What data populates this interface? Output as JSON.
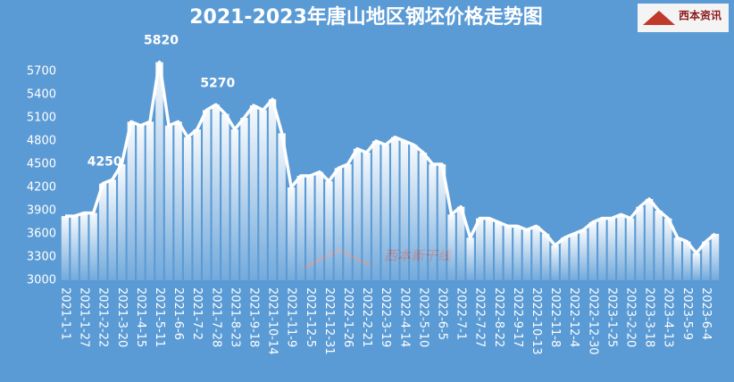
{
  "chart_data": {
    "type": "area",
    "title": "2021-2023年唐山地区钢坯价格走势图",
    "logo_text": "西本资讯",
    "watermark": "西本新干线",
    "categories": [
      "2021-1-1",
      null,
      "2021-1-27",
      null,
      "2021-2-22",
      null,
      "2021-3-20",
      null,
      "2021-4-15",
      null,
      "2021-5-11",
      null,
      "2021-6-6",
      null,
      "2021-7-2",
      null,
      "2021-7-28",
      null,
      "2021-8-23",
      null,
      "2021-9-18",
      null,
      "2021-10-14",
      null,
      "2021-11-9",
      null,
      "2021-12-5",
      null,
      "2021-12-31",
      null,
      "2022-1-26",
      null,
      "2022-2-21",
      null,
      "2022-3-19",
      null,
      "2022-4-14",
      null,
      "2022-5-10",
      null,
      "2022-6-5",
      null,
      "2022-7-1",
      null,
      "2022-7-27",
      null,
      "2022-8-22",
      null,
      "2022-9-17",
      null,
      "2022-10-13",
      null,
      "2022-11-8",
      null,
      "2022-12-4",
      null,
      "2022-12-30",
      null,
      "2023-1-25",
      null,
      "2023-2-20",
      null,
      "2023-3-18",
      null,
      "2023-4-13",
      null,
      "2023-5-9",
      null,
      "2023-6-4",
      null
    ],
    "values": [
      3830,
      3830,
      3870,
      3870,
      4250,
      4300,
      4500,
      5050,
      5000,
      5050,
      5820,
      5000,
      5050,
      4850,
      4950,
      5200,
      5270,
      5150,
      4950,
      5100,
      5260,
      5200,
      5340,
      4900,
      4200,
      4350,
      4350,
      4400,
      4280,
      4450,
      4500,
      4700,
      4650,
      4800,
      4750,
      4850,
      4800,
      4750,
      4650,
      4500,
      4500,
      3850,
      3950,
      3550,
      3800,
      3800,
      3750,
      3700,
      3700,
      3650,
      3700,
      3600,
      3450,
      3550,
      3600,
      3650,
      3750,
      3800,
      3800,
      3850,
      3800,
      3950,
      4050,
      3900,
      3800,
      3550,
      3500,
      3350,
      3500,
      3600
    ],
    "value_labels": [
      null,
      null,
      null,
      null,
      "4250",
      null,
      null,
      null,
      null,
      null,
      "5820",
      null,
      null,
      null,
      null,
      null,
      "5270",
      null,
      null,
      null,
      null,
      null,
      null,
      null,
      null,
      null,
      null,
      null,
      null,
      null,
      null,
      null,
      null,
      null,
      null,
      null,
      null,
      null,
      null,
      null,
      null,
      null,
      null,
      null,
      null,
      null,
      null,
      null,
      null,
      null,
      null,
      null,
      null,
      null,
      null,
      null,
      null,
      null,
      null,
      null,
      null,
      null,
      null,
      null,
      null,
      null,
      null,
      null,
      null,
      null
    ],
    "color": "#ffffff",
    "ylim": [
      3000,
      5900
    ],
    "yticks": [
      3000,
      3300,
      3600,
      3900,
      4200,
      4500,
      4800,
      5100,
      5400,
      5700
    ],
    "grid": false
  }
}
